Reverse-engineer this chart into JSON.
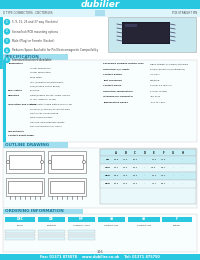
{
  "title": "dubilier",
  "header_bg": "#29c8e0",
  "header_bg2": "#7de0f0",
  "page_bg": "#ffffff",
  "part_number_left": "D TYPE CONNECTORS - DBCTDM1SS",
  "part_number_right": "PCB STRAIGHT PIN",
  "features": [
    "5, 9, 15, 25 and 37 way (Sockets)",
    "Screw/lock/PCB mounting options",
    "Male (Plug) or Female (Socket)",
    "Reduces Space Available for Pin Electromagnetic Compatibility",
    "Standard Backshell Available"
  ],
  "spec_header": "SPECIFICATION",
  "outline_header": "OUTLINE DRAWING",
  "ordering_header": "ORDERING INFORMATION",
  "footer_bg": "#29c8e0",
  "footer_text": "Fax: 01371 875078    www.dubilier.co.uk    Tel: 01371 875750",
  "footer_color": "#ffffff",
  "body_text_color": "#444444",
  "accent": "#29c8e0",
  "sidebar_color": "#29c8e0",
  "row_color1": "#c8eef5",
  "row_color2": "#e8f8fb",
  "section_label_bg": "#a0dff0",
  "spec_left": [
    [
      "Termination",
      ""
    ],
    [
      "",
      "Screw Termination"
    ],
    [
      "",
      "Solder Termination"
    ],
    [
      "",
      "Wire Wrap"
    ],
    [
      "",
      "IDC (Insulation Displacement)"
    ],
    [
      "",
      "PCB (Printed Circuit Board)"
    ],
    [
      "Polarization",
      "Polarized"
    ],
    [
      "Mounting",
      "Panel/Chassis mount, screw locking"
    ],
    [
      "",
      "or IDC, press-fit, solder"
    ],
    [
      "Insulation and Plating",
      "Male contacts gold plated over nickel"
    ],
    [
      "",
      "on 50um (0.05mm) at contact area"
    ],
    [
      "",
      "electrolytic nickel plating"
    ],
    [
      "",
      "Male housing plastic"
    ],
    [
      "",
      "Housing: polycarbonate plastic"
    ],
    [
      "",
      "glass-reinforced to UL 94V-0"
    ],
    [
      "Compatibility",
      ""
    ],
    [
      "Contact Resistance",
      "P202"
    ]
  ],
  "spec_right_labels": [
    "Packaging Plugged Mating Type",
    "Operating A/V Limits",
    "Contact Rating",
    "Test Technique",
    "Contact Finish",
    "Operating Temperature",
    "Intended for Horizontal",
    "Temperature Range"
  ],
  "spec_right_vals": [
    "DB15 Straight (0.05mm) standard",
    "Crimp connectors (Multiplecon)",
    "UL VW-1",
    "DIN/kang",
    "3.0mm 0.5 mm Tin",
    "2.0mm contact",
    "July 2002",
    "-30C to +85C"
  ],
  "table_col_labels": [
    "",
    "A",
    "B",
    "C",
    "D",
    "E",
    "F",
    "G",
    "H"
  ],
  "table_rows": [
    [
      "9W",
      "30.8",
      "24.9",
      "18.0",
      "-",
      "33.3",
      "27.5",
      "-",
      "-"
    ],
    [
      "15W",
      "39.1",
      "33.3",
      "26.4",
      "-",
      "41.5",
      "35.7",
      "-",
      "-"
    ],
    [
      "25W",
      "53.0",
      "47.0",
      "39.2",
      "-",
      "55.4",
      "49.4",
      "-",
      "-"
    ],
    [
      "37W",
      "69.3",
      "63.3",
      "56.4",
      "-",
      "71.7",
      "65.7",
      "-",
      "-"
    ]
  ],
  "order_sections": [
    "DSC",
    "DB",
    "MF",
    "SS",
    "SS",
    "F"
  ],
  "order_sublabels": [
    "Series",
    "Contacts",
    "Assembly Type",
    "Contact Size",
    "Contact Size",
    "Plating"
  ],
  "page_number": "316"
}
